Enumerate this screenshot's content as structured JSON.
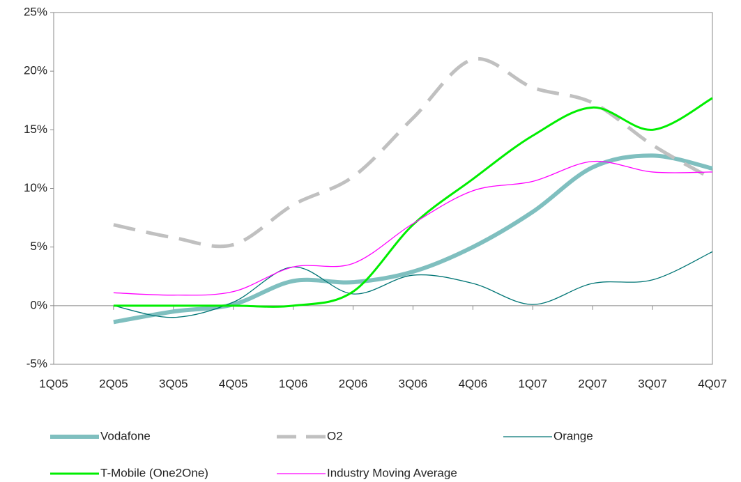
{
  "chart_data": {
    "type": "line",
    "categories": [
      "1Q05",
      "2Q05",
      "3Q05",
      "4Q05",
      "1Q06",
      "2Q06",
      "3Q06",
      "4Q06",
      "1Q07",
      "2Q07",
      "3Q07",
      "4Q07"
    ],
    "series": [
      {
        "name": "Vodafone",
        "color": "#7fbfbf",
        "values": [
          null,
          -1.4,
          -0.5,
          0.1,
          2.1,
          2.0,
          2.9,
          5.0,
          8.0,
          11.8,
          12.8,
          11.7
        ]
      },
      {
        "name": "O2",
        "color": "#c0c0c0",
        "values": [
          null,
          6.9,
          5.8,
          5.2,
          8.6,
          11.0,
          16.0,
          21.0,
          18.6,
          17.3,
          13.7,
          10.8
        ]
      },
      {
        "name": "Orange",
        "color": "#007575",
        "values": [
          null,
          0.0,
          -1.0,
          0.3,
          3.3,
          1.0,
          2.6,
          1.9,
          0.1,
          1.9,
          2.2,
          4.6
        ]
      },
      {
        "name": "T-Mobile (One2One)",
        "color": "#00ee00",
        "values": [
          null,
          0.0,
          0.0,
          0.0,
          0.0,
          1.2,
          6.9,
          10.8,
          14.5,
          16.9,
          15.0,
          17.7
        ]
      },
      {
        "name": "Industry Moving Average",
        "color": "#ff00ff",
        "values": [
          null,
          1.1,
          0.9,
          1.2,
          3.3,
          3.6,
          7.0,
          9.8,
          10.6,
          12.3,
          11.4,
          11.4
        ]
      }
    ],
    "ylim": [
      -5,
      25
    ],
    "yticks": [
      {
        "value": -5,
        "label": "-5%"
      },
      {
        "value": 0,
        "label": "0%"
      },
      {
        "value": 5,
        "label": "5%"
      },
      {
        "value": 10,
        "label": "10%"
      },
      {
        "value": 15,
        "label": "15%"
      },
      {
        "value": 20,
        "label": "20%"
      },
      {
        "value": 25,
        "label": "25%"
      }
    ],
    "grid": false
  }
}
